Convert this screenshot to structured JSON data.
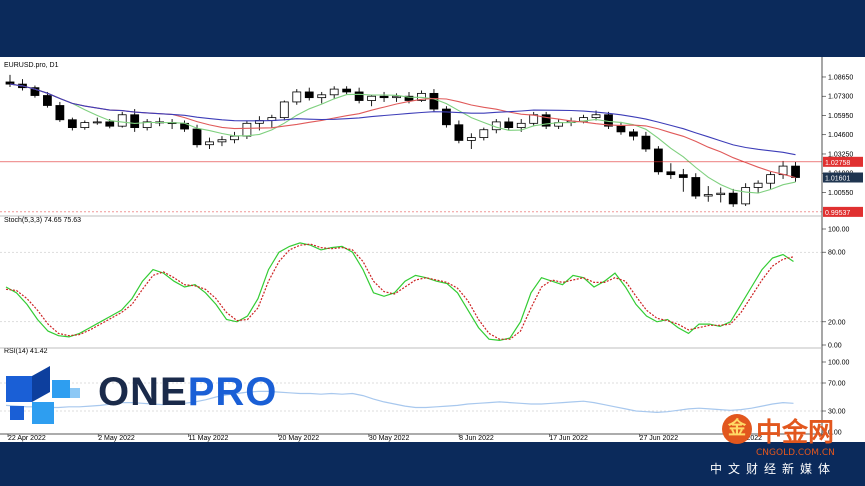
{
  "colors": {
    "frame": "#0b2a5b",
    "bull": "#ffffff",
    "bear": "#000000",
    "ma_fast": "#7fd07f",
    "ma_mid": "#e05a5a",
    "ma_slow": "#3d3db8",
    "stoch_k": "#33cc33",
    "stoch_d": "#cc2222",
    "rsi": "#a8c8ee",
    "price_marker": "#e03030",
    "logo_blue": "#1a5fd6",
    "logo_light": "#2e9ef0",
    "logo_dark": "#1a2a4a"
  },
  "chart_data": [
    {
      "type": "candlestick",
      "title": "EURUSD.pro, D1",
      "ylim": [
        0.9897,
        1.0935
      ],
      "y_ticks": [
        "1.08650",
        "1.07300",
        "1.05950",
        "1.04600",
        "1.03250",
        "1.01900",
        "1.00550"
      ],
      "x_ticks": [
        "22 Apr 2022",
        "2 May 2022",
        "11 May 2022",
        "20 May 2022",
        "30 May 2022",
        "8 Jun 2022",
        "17 Jun 2022",
        "27 Jun 2022",
        "6 Jul 2022"
      ],
      "price_labels": [
        {
          "label": "1.02758",
          "kind": "red"
        },
        {
          "label": "1.01601",
          "kind": "dark"
        },
        {
          "label": "0.99537",
          "kind": "red"
        }
      ],
      "candles": [
        [
          1.083,
          1.088,
          1.0795,
          1.0815
        ],
        [
          1.0815,
          1.085,
          1.077,
          1.079
        ],
        [
          1.079,
          1.0805,
          1.072,
          1.0735
        ],
        [
          1.0735,
          1.076,
          1.065,
          1.0665
        ],
        [
          1.0665,
          1.069,
          1.055,
          1.0565
        ],
        [
          1.0565,
          1.058,
          1.049,
          1.051
        ],
        [
          1.051,
          1.056,
          1.0495,
          1.0545
        ],
        [
          1.0545,
          1.058,
          1.053,
          1.055
        ],
        [
          1.055,
          1.057,
          1.0505,
          1.052
        ],
        [
          1.052,
          1.062,
          1.051,
          1.06
        ],
        [
          1.06,
          1.064,
          1.048,
          1.051
        ],
        [
          1.051,
          1.057,
          1.049,
          1.055
        ],
        [
          1.055,
          1.058,
          1.052,
          1.0545
        ],
        [
          1.0545,
          1.057,
          1.05,
          1.054
        ],
        [
          1.054,
          1.056,
          1.048,
          1.05
        ],
        [
          1.05,
          1.053,
          1.037,
          1.039
        ],
        [
          1.039,
          1.044,
          1.036,
          1.041
        ],
        [
          1.041,
          1.045,
          1.038,
          1.0425
        ],
        [
          1.0425,
          1.048,
          1.04,
          1.045
        ],
        [
          1.045,
          1.056,
          1.043,
          1.054
        ],
        [
          1.054,
          1.059,
          1.049,
          1.056
        ],
        [
          1.056,
          1.06,
          1.051,
          1.058
        ],
        [
          1.058,
          1.07,
          1.056,
          1.069
        ],
        [
          1.069,
          1.078,
          1.067,
          1.076
        ],
        [
          1.076,
          1.079,
          1.07,
          1.072
        ],
        [
          1.072,
          1.076,
          1.068,
          1.074
        ],
        [
          1.074,
          1.08,
          1.071,
          1.078
        ],
        [
          1.078,
          1.08,
          1.074,
          1.076
        ],
        [
          1.076,
          1.079,
          1.068,
          1.07
        ],
        [
          1.07,
          1.074,
          1.066,
          1.073
        ],
        [
          1.073,
          1.076,
          1.069,
          1.072
        ],
        [
          1.072,
          1.075,
          1.069,
          1.073
        ],
        [
          1.073,
          1.076,
          1.068,
          1.07
        ],
        [
          1.07,
          1.077,
          1.069,
          1.075
        ],
        [
          1.075,
          1.078,
          1.062,
          1.064
        ],
        [
          1.064,
          1.066,
          1.051,
          1.053
        ],
        [
          1.053,
          1.056,
          1.04,
          1.042
        ],
        [
          1.042,
          1.047,
          1.036,
          1.044
        ],
        [
          1.044,
          1.051,
          1.042,
          1.0495
        ],
        [
          1.0495,
          1.057,
          1.047,
          1.055
        ],
        [
          1.055,
          1.058,
          1.049,
          1.051
        ],
        [
          1.051,
          1.057,
          1.048,
          1.054
        ],
        [
          1.054,
          1.062,
          1.052,
          1.06
        ],
        [
          1.06,
          1.062,
          1.05,
          1.052
        ],
        [
          1.052,
          1.057,
          1.05,
          1.0545
        ],
        [
          1.0545,
          1.058,
          1.052,
          1.0555
        ],
        [
          1.0555,
          1.06,
          1.054,
          1.058
        ],
        [
          1.058,
          1.063,
          1.056,
          1.06
        ],
        [
          1.06,
          1.062,
          1.05,
          1.052
        ],
        [
          1.052,
          1.055,
          1.046,
          1.048
        ],
        [
          1.048,
          1.05,
          1.042,
          1.045
        ],
        [
          1.045,
          1.048,
          1.034,
          1.036
        ],
        [
          1.036,
          1.038,
          1.018,
          1.02
        ],
        [
          1.02,
          1.026,
          1.015,
          1.018
        ],
        [
          1.018,
          1.022,
          1.006,
          1.016
        ],
        [
          1.016,
          1.019,
          1.001,
          1.003
        ],
        [
          1.003,
          1.01,
          0.999,
          1.004
        ],
        [
          1.004,
          1.009,
          0.9985,
          1.005
        ],
        [
          1.005,
          1.008,
          0.9954,
          0.9975
        ],
        [
          0.9975,
          1.012,
          0.996,
          1.009
        ],
        [
          1.009,
          1.014,
          1.005,
          1.012
        ],
        [
          1.012,
          1.02,
          1.008,
          1.018
        ],
        [
          1.018,
          1.0276,
          1.015,
          1.024
        ],
        [
          1.024,
          1.027,
          1.013,
          1.016
        ]
      ]
    },
    {
      "type": "line",
      "title": "Stoch(5,3,3) 74.65 75.63",
      "ylim": [
        0,
        100
      ],
      "y_ticks": [
        "100.00",
        "80.00",
        "20.00",
        "0.00"
      ],
      "series": [
        {
          "values": [
            50,
            45,
            35,
            22,
            12,
            8,
            7,
            10,
            15,
            20,
            25,
            30,
            40,
            55,
            65,
            62,
            55,
            50,
            52,
            45,
            35,
            22,
            20,
            25,
            40,
            65,
            80,
            85,
            88,
            86,
            82,
            84,
            85,
            80,
            65,
            45,
            42,
            45,
            55,
            60,
            58,
            55,
            53,
            45,
            30,
            15,
            5,
            4,
            6,
            20,
            45,
            58,
            55,
            52,
            60,
            58,
            50,
            55,
            62,
            50,
            35,
            25,
            20,
            22,
            15,
            10,
            18,
            18,
            16,
            20,
            35,
            50,
            65,
            75,
            78,
            72
          ]
        },
        {
          "values": [
            48,
            47,
            40,
            30,
            18,
            10,
            8,
            9,
            13,
            18,
            23,
            28,
            35,
            48,
            60,
            63,
            58,
            52,
            51,
            48,
            40,
            28,
            21,
            22,
            32,
            55,
            72,
            82,
            86,
            87,
            84,
            83,
            84,
            82,
            72,
            55,
            46,
            44,
            50,
            56,
            58,
            56,
            54,
            49,
            38,
            22,
            10,
            5,
            5,
            12,
            32,
            50,
            56,
            54,
            56,
            58,
            54,
            54,
            58,
            55,
            42,
            30,
            23,
            21,
            18,
            13,
            15,
            17,
            17,
            18,
            28,
            42,
            56,
            68,
            74,
            76
          ]
        }
      ]
    },
    {
      "type": "line",
      "title": "RSI(14) 41.42",
      "ylim": [
        0,
        100
      ],
      "y_ticks": [
        "100.00",
        "70.00",
        "30.00",
        "0.00"
      ],
      "series": [
        {
          "values": [
            38,
            37,
            36,
            36,
            35,
            35,
            36,
            36,
            37,
            38,
            40,
            42,
            42,
            41,
            40,
            39,
            40,
            41,
            43,
            46,
            50,
            53,
            55,
            57,
            58,
            58,
            57,
            56,
            55,
            55,
            54,
            55,
            54,
            55,
            52,
            47,
            43,
            40,
            37,
            35,
            35,
            36,
            37,
            38,
            40,
            41,
            42,
            43,
            42,
            41,
            40,
            40,
            41,
            42,
            43,
            44,
            42,
            39,
            36,
            33,
            30,
            29,
            28,
            29,
            31,
            33,
            34,
            33,
            32,
            31,
            32,
            34,
            37,
            40,
            42,
            41
          ]
        }
      ]
    }
  ]
}
